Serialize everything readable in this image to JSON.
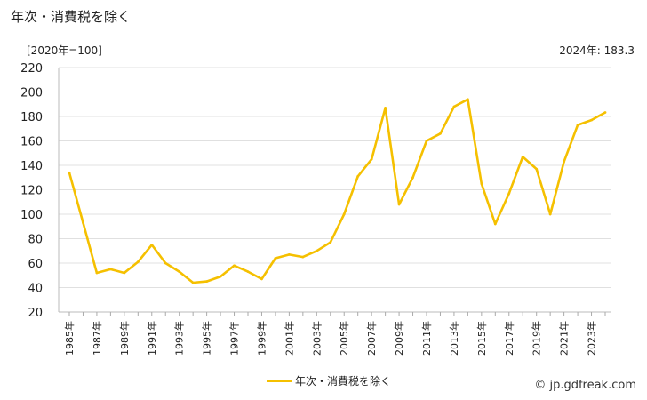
{
  "page": {
    "title": "年次・消費税を除く",
    "unit_label": "[2020年=100]",
    "latest_value_label": "2024年: 183.3",
    "credit": "© jp.gdfreak.com"
  },
  "colors": {
    "series": "#f5c000",
    "grid": "#e0e0e0"
  },
  "chart_data": {
    "type": "line",
    "title": "年次・消費税を除く",
    "ylabel": "[2020年=100]",
    "ylim": [
      20,
      220
    ],
    "yticks": [
      20,
      40,
      60,
      80,
      100,
      120,
      140,
      160,
      180,
      200,
      220
    ],
    "x": [
      1985,
      1986,
      1987,
      1988,
      1989,
      1990,
      1991,
      1992,
      1993,
      1994,
      1995,
      1996,
      1997,
      1998,
      1999,
      2000,
      2001,
      2002,
      2003,
      2004,
      2005,
      2006,
      2007,
      2008,
      2009,
      2010,
      2011,
      2012,
      2013,
      2014,
      2015,
      2016,
      2017,
      2018,
      2019,
      2020,
      2021,
      2022,
      2023,
      2024
    ],
    "xtick_labels": [
      "1985年",
      "1987年",
      "1989年",
      "1991年",
      "1993年",
      "1995年",
      "1997年",
      "1999年",
      "2001年",
      "2003年",
      "2005年",
      "2007年",
      "2009年",
      "2011年",
      "2013年",
      "2015年",
      "2017年",
      "2019年",
      "2021年",
      "2023年"
    ],
    "grid": true,
    "legend": "bottom-center",
    "series": [
      {
        "name": "年次・消費税を除く",
        "values": [
          134,
          93,
          52,
          55,
          52,
          61,
          75,
          60,
          53,
          44,
          45,
          49,
          58,
          53,
          47,
          64,
          67,
          65,
          70,
          77,
          100,
          131,
          145,
          187,
          108,
          130,
          160,
          166,
          188,
          194,
          125,
          92,
          117,
          147,
          137,
          100,
          143,
          173,
          177,
          183.3
        ]
      }
    ]
  }
}
